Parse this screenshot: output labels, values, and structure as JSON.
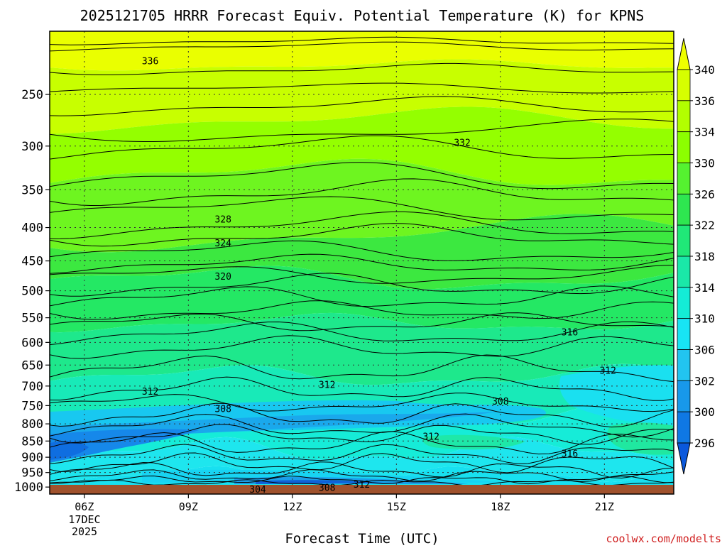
{
  "chart_data": {
    "type": "heatmap",
    "title": "2025121705 HRRR Forecast Equiv. Potential Temperature (K) for KPNS",
    "xlabel": "Forecast Time (UTC)",
    "ylabel": "",
    "credit": "coolwx.com/modelts",
    "x_domain_hours": [
      5,
      23
    ],
    "x_ticks": [
      {
        "hour": 6,
        "label": "06Z"
      },
      {
        "hour": 9,
        "label": "09Z"
      },
      {
        "hour": 12,
        "label": "12Z"
      },
      {
        "hour": 15,
        "label": "15Z"
      },
      {
        "hour": 18,
        "label": "18Z"
      },
      {
        "hour": 21,
        "label": "21Z"
      }
    ],
    "x_date_label": [
      "17DEC",
      "2025"
    ],
    "y_scale": "log-pressure",
    "y_domain_hpa": [
      200,
      1025
    ],
    "y_ticks": [
      250,
      300,
      350,
      400,
      450,
      500,
      550,
      600,
      650,
      700,
      750,
      800,
      850,
      900,
      950,
      1000
    ],
    "colorbar": {
      "labels": [
        340,
        336,
        334,
        330,
        326,
        322,
        318,
        314,
        310,
        306,
        302,
        300,
        296
      ],
      "colors": [
        "#eeff00",
        "#d6ff00",
        "#b2ff00",
        "#8cff00",
        "#55f230",
        "#2ee650",
        "#20e878",
        "#1ae8a8",
        "#14ecd6",
        "#18e4f4",
        "#22c4f0",
        "#1898ea",
        "#0f78e4",
        "#0a58dc"
      ]
    },
    "contour_labels": [
      {
        "text": "336",
        "hour": 7.9,
        "pressure": 222
      },
      {
        "text": "332",
        "hour": 16.9,
        "pressure": 296
      },
      {
        "text": "328",
        "hour": 10.0,
        "pressure": 388
      },
      {
        "text": "324",
        "hour": 10.0,
        "pressure": 422
      },
      {
        "text": "320",
        "hour": 10.0,
        "pressure": 475
      },
      {
        "text": "316",
        "hour": 20.0,
        "pressure": 578
      },
      {
        "text": "312",
        "hour": 21.1,
        "pressure": 662
      },
      {
        "text": "312",
        "hour": 7.9,
        "pressure": 713
      },
      {
        "text": "312",
        "hour": 13.0,
        "pressure": 696
      },
      {
        "text": "308",
        "hour": 10.0,
        "pressure": 758
      },
      {
        "text": "308",
        "hour": 18.0,
        "pressure": 738
      },
      {
        "text": "312",
        "hour": 16.0,
        "pressure": 836
      },
      {
        "text": "316",
        "hour": 20.0,
        "pressure": 887
      },
      {
        "text": "312",
        "hour": 14.0,
        "pressure": 990
      },
      {
        "text": "308",
        "hour": 13.0,
        "pressure": 1001
      },
      {
        "text": "304",
        "hour": 11.0,
        "pressure": 1007
      }
    ]
  }
}
